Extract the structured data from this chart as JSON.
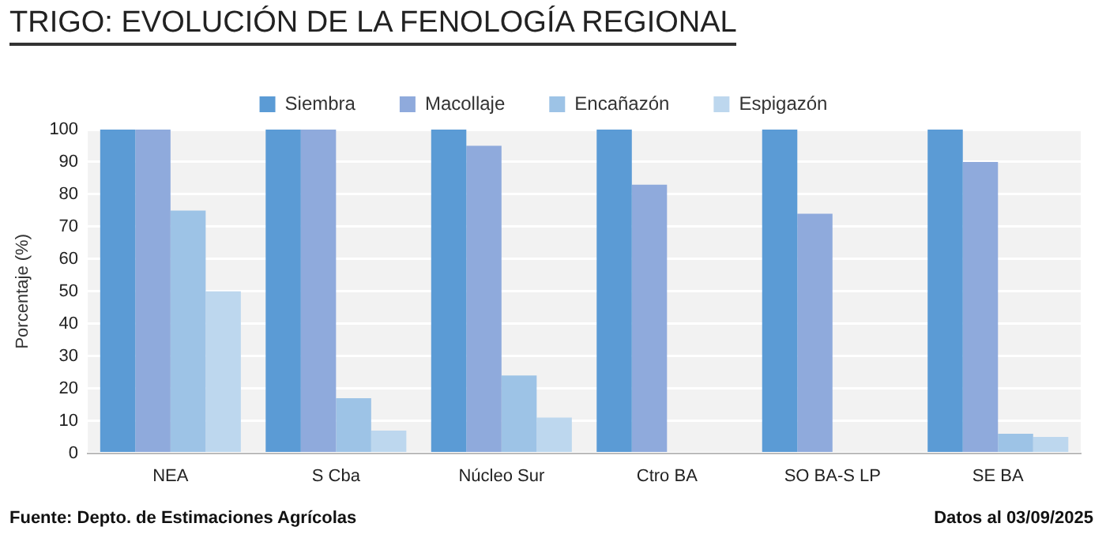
{
  "chart_data": {
    "type": "bar",
    "title": "TRIGO: EVOLUCIÓN DE LA FENOLOGÍA REGIONAL",
    "ylabel": "Porcentaje (%)",
    "categories": [
      "NEA",
      "S Cba",
      "Núcleo Sur",
      "Ctro BA",
      "SO BA-S LP",
      "SE BA"
    ],
    "series": [
      {
        "name": "Siembra",
        "color": "#5b9bd5",
        "values": [
          100,
          100,
          100,
          100,
          100,
          100
        ]
      },
      {
        "name": "Macollaje",
        "color": "#8faadc",
        "values": [
          100,
          100,
          95,
          83,
          74,
          90
        ]
      },
      {
        "name": "Encañazón",
        "color": "#9dc3e6",
        "values": [
          75,
          17,
          24,
          0,
          0,
          6
        ]
      },
      {
        "name": "Espigazón",
        "color": "#bdd7ee",
        "values": [
          50,
          7,
          11,
          0,
          0,
          5
        ]
      }
    ],
    "ylim": [
      0,
      100
    ],
    "yticks": [
      0,
      10,
      20,
      30,
      40,
      50,
      60,
      70,
      80,
      90,
      100
    ],
    "grid": "y",
    "legend": "top",
    "annotations": [
      "Fuente: Depto. de Estimaciones Agrícolas",
      "Datos al 03/09/2025"
    ]
  }
}
